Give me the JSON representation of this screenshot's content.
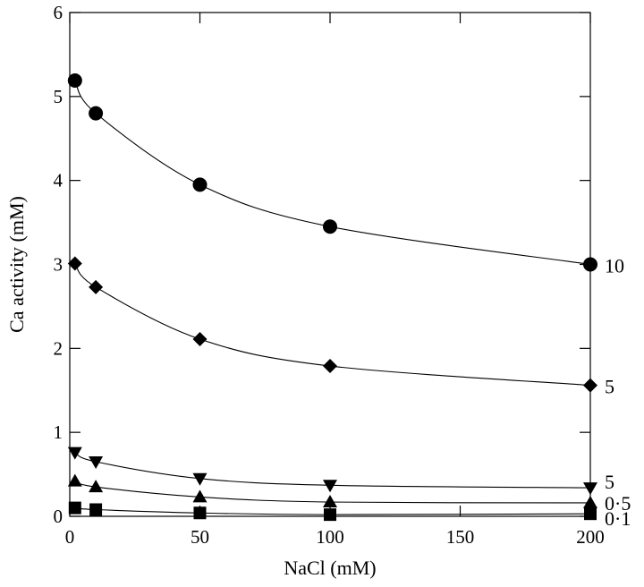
{
  "chart_data": {
    "type": "scatter",
    "title": "",
    "xlabel": "NaCl (mM)",
    "ylabel": "Ca activity (mM)",
    "xlim": [
      0,
      200
    ],
    "ylim": [
      0,
      6
    ],
    "xticks": [
      0,
      50,
      100,
      150,
      200
    ],
    "yticks": [
      0,
      1,
      2,
      3,
      4,
      5,
      6
    ],
    "xtick_labels": [
      "0",
      "50",
      "100",
      "150",
      "200"
    ],
    "ytick_labels": [
      "0",
      "1",
      "2",
      "3",
      "4",
      "5",
      "6"
    ],
    "grid": false,
    "legend": "none",
    "fitted_curves": true,
    "series": [
      {
        "label": "10",
        "marker": "circle",
        "x": [
          2,
          10,
          50,
          100,
          200
        ],
        "y": [
          5.19,
          4.8,
          3.95,
          3.45,
          3.0
        ]
      },
      {
        "label": "5",
        "marker": "diamond",
        "x": [
          2,
          10,
          50,
          100,
          200
        ],
        "y": [
          3.01,
          2.73,
          2.11,
          1.79,
          1.56
        ]
      },
      {
        "label": "5",
        "marker": "triangle-down",
        "x": [
          2,
          10,
          50,
          100,
          200
        ],
        "y": [
          0.76,
          0.65,
          0.45,
          0.37,
          0.34
        ]
      },
      {
        "label": "0·5",
        "marker": "triangle-up",
        "x": [
          2,
          10,
          50,
          100,
          200
        ],
        "y": [
          0.42,
          0.35,
          0.23,
          0.17,
          0.16
        ]
      },
      {
        "label": "0·1",
        "marker": "square",
        "x": [
          2,
          10,
          50,
          100,
          200
        ],
        "y": [
          0.1,
          0.08,
          0.04,
          0.02,
          0.03
        ]
      }
    ]
  }
}
